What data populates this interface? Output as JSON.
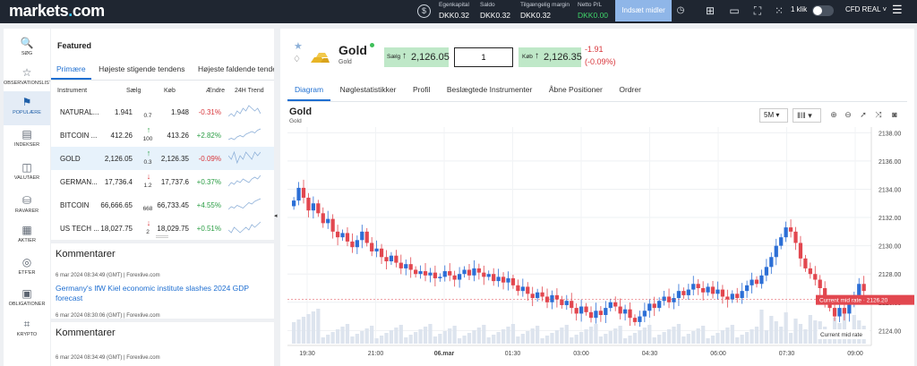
{
  "topbar": {
    "logo_prefix": "markets",
    "logo_dot": ".",
    "logo_suffix": "com",
    "account": [
      {
        "label": "Egenkapital",
        "value": "DKK0.32"
      },
      {
        "label": "Saldo",
        "value": "DKK0.32"
      },
      {
        "label": "Tilgængelig margin",
        "value": "DKK0.32"
      },
      {
        "label": "Netto P/L",
        "value": "DKK0.00"
      }
    ],
    "deposit_label": "Indsæt midler",
    "one_click_label": "1 klik",
    "account_type": "CFD REAL",
    "currency_icon": "$"
  },
  "rail": [
    {
      "label": "SØG",
      "icon": "🔍"
    },
    {
      "label": "OBSERVATIONSLISTE",
      "icon": "☆"
    },
    {
      "label": "POPULÆRE",
      "icon": "⚑"
    },
    {
      "label": "INDEKSER",
      "icon": "▤"
    },
    {
      "label": "VALUTAER",
      "icon": "◫"
    },
    {
      "label": "RÅVARER",
      "icon": "⛁"
    },
    {
      "label": "AKTIER",
      "icon": "▦"
    },
    {
      "label": "ETF'ER",
      "icon": "◎"
    },
    {
      "label": "OBLIGATIONER",
      "icon": "▣"
    },
    {
      "label": "KRYPTO",
      "icon": "⌗"
    }
  ],
  "featured": {
    "title": "Featured",
    "tabs": [
      "Primære",
      "Højeste stigende tendens",
      "Højeste faldende tendens"
    ],
    "columns": {
      "instrument": "Instrument",
      "sell": "Sælg",
      "buy": "Køb",
      "change": "Ændre",
      "trend": "24H Trend"
    },
    "rows": [
      {
        "name": "NATURAL...",
        "sell": "1.941",
        "arrow": "",
        "spread": "0.7",
        "buy": "1.948",
        "change": "-0.31%",
        "dir": "down",
        "trend": [
          5,
          6,
          5,
          7,
          6,
          8,
          7,
          9,
          8,
          7,
          8,
          6
        ]
      },
      {
        "name": "BITCOIN ...",
        "sell": "412.26",
        "arrow": "↑",
        "spread": "100",
        "buy": "413.26",
        "change": "+2.82%",
        "dir": "up",
        "trend": [
          3,
          4,
          3,
          5,
          6,
          5,
          7,
          8,
          9,
          8,
          10,
          11
        ]
      },
      {
        "name": "GOLD",
        "sell": "2,126.05",
        "arrow": "↑",
        "spread": "0.3",
        "buy": "2,126.35",
        "change": "-0.09%",
        "dir": "down",
        "trend": [
          8,
          7,
          9,
          6,
          8,
          7,
          9,
          8,
          7,
          9,
          8,
          9
        ]
      },
      {
        "name": "GERMAN...",
        "sell": "17,736.4",
        "arrow": "↓",
        "spread": "1.2",
        "buy": "17,737.6",
        "change": "+0.37%",
        "dir": "up",
        "trend": [
          4,
          6,
          5,
          7,
          6,
          8,
          7,
          6,
          8,
          9,
          8,
          10
        ]
      },
      {
        "name": "BITCOIN",
        "sell": "66,666.65",
        "arrow": "",
        "spread": "668",
        "buy": "66,733.45",
        "change": "+4.55%",
        "dir": "up",
        "trend": [
          3,
          5,
          4,
          6,
          5,
          4,
          6,
          8,
          7,
          9,
          10,
          11
        ]
      },
      {
        "name": "US TECH ...",
        "sell": "18,027.75",
        "arrow": "↓",
        "spread": "2",
        "buy": "18,029.75",
        "change": "+0.51%",
        "dir": "up",
        "trend": [
          6,
          5,
          7,
          6,
          5,
          6,
          7,
          6,
          8,
          7,
          8,
          9
        ]
      }
    ]
  },
  "comments": [
    {
      "title": "Kommentarer",
      "items": [
        {
          "meta": "6 mar 2024 08:34:49 (GMT) | Forexlive.com",
          "headline": "Germany's IfW Kiel economic institute slashes 2024 GDP forecast"
        },
        {
          "meta": "6 mar 2024 08:30:06 (GMT) | Forexlive.com",
          "headline": ""
        }
      ]
    },
    {
      "title": "Kommentarer",
      "items": [
        {
          "meta": "6 mar 2024 08:34:49 (GMT) | Forexlive.com",
          "headline": ""
        }
      ]
    }
  ],
  "instrument": {
    "name": "Gold",
    "subtitle": "Gold",
    "sell_label": "Sælg",
    "sell_price": "2,126.05",
    "quantity": "1",
    "buy_label": "Køb",
    "buy_price": "2,126.35",
    "change_abs": "-1.91",
    "change_pct": "(-0.09%)"
  },
  "main_tabs": [
    "Diagram",
    "Nøglestatistikker",
    "Profil",
    "Beslægtede Instrumenter",
    "Åbne Positioner",
    "Ordrer"
  ],
  "chart_toolbar": {
    "timeframe": "5M",
    "chart_type_icon": "candles"
  },
  "chart_data": {
    "type": "candlestick",
    "title": "Gold",
    "subtitle": "Gold",
    "x_ticks": [
      "19:30",
      "21:00",
      "06.mar",
      "01:30",
      "03:00",
      "04:30",
      "06:00",
      "07:30",
      "09:00"
    ],
    "y_ticks": [
      2124,
      2126,
      2128,
      2130,
      2132,
      2134,
      2136,
      2138
    ],
    "ylim": [
      2123.2,
      2138.4
    ],
    "current_mid_label": "Current mid rate",
    "current_mid_value": "2126.20",
    "current_mid": 2126.2,
    "volume_label": "Current mid rate",
    "closes": [
      2133.2,
      2134.1,
      2133.4,
      2132.5,
      2133.0,
      2132.3,
      2131.6,
      2131.9,
      2131.0,
      2130.6,
      2130.9,
      2130.3,
      2129.9,
      2130.4,
      2131.0,
      2130.2,
      2129.6,
      2129.8,
      2129.2,
      2128.9,
      2129.3,
      2128.8,
      2128.4,
      2128.7,
      2128.3,
      2128.0,
      2128.2,
      2127.9,
      2128.1,
      2127.7,
      2127.8,
      2128.2,
      2127.9,
      2127.6,
      2128.0,
      2128.3,
      2127.9,
      2128.4,
      2128.1,
      2127.8,
      2128.0,
      2127.5,
      2127.8,
      2127.4,
      2127.7,
      2127.2,
      2126.8,
      2127.1,
      2126.6,
      2126.3,
      2126.7,
      2126.4,
      2126.0,
      2126.5,
      2126.2,
      2125.8,
      2126.1,
      2125.6,
      2125.2,
      2125.7,
      2125.3,
      2124.9,
      2125.4,
      2125.1,
      2125.6,
      2126.0,
      2125.7,
      2125.2,
      2125.5,
      2124.9,
      2124.6,
      2125.0,
      2125.4,
      2125.9,
      2125.6,
      2126.1,
      2126.4,
      2126.0,
      2126.3,
      2126.8,
      2126.5,
      2126.9,
      2127.3,
      2127.0,
      2126.7,
      2127.1,
      2126.6,
      2126.9,
      2126.4,
      2126.2,
      2126.6,
      2126.3,
      2126.8,
      2127.2,
      2127.6,
      2127.3,
      2127.9,
      2128.5,
      2129.2,
      2130.0,
      2130.6,
      2131.3,
      2131.0,
      2130.2,
      2129.1,
      2128.4,
      2128.0,
      2127.6,
      2127.0,
      2126.2,
      2125.6,
      2125.0,
      2125.6,
      2125.2,
      2125.9,
      2126.5,
      2127.3,
      2126.8
    ]
  }
}
